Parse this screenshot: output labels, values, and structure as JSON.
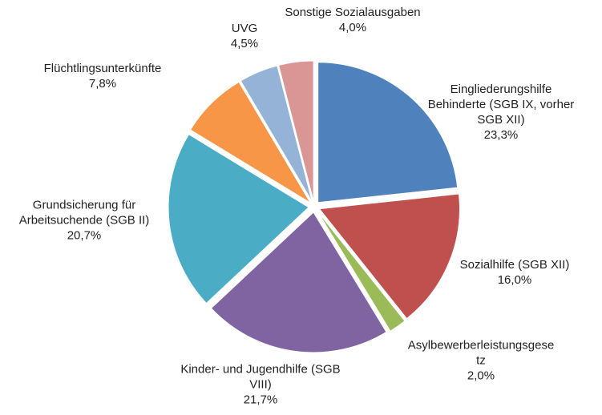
{
  "chart_data": {
    "type": "pie",
    "categories": [
      "Eingliederungshilfe Behinderte (SGB IX, vorher SGB XII)",
      "Sozialhilfe (SGB XII)",
      "Asylbewerberleistungsgesetz",
      "Kinder- und Jugendhilfe (SGB VIII)",
      "Grundsicherung für Arbeitsuchende (SGB II)",
      "Flüchtlingsunterkünfte",
      "UVG",
      "Sonstige Sozialausgaben"
    ],
    "values": [
      23.3,
      16.0,
      2.0,
      21.7,
      20.7,
      7.8,
      4.5,
      4.0
    ],
    "value_labels": [
      "23,3%",
      "16,0%",
      "2,0%",
      "21,7%",
      "20,7%",
      "7,8%",
      "4,5%",
      "4,0%"
    ],
    "colors": [
      "#4f81bd",
      "#c0504d",
      "#9bbb59",
      "#8064a2",
      "#4bacc6",
      "#f79646",
      "#95b3d7",
      "#d99694"
    ]
  }
}
